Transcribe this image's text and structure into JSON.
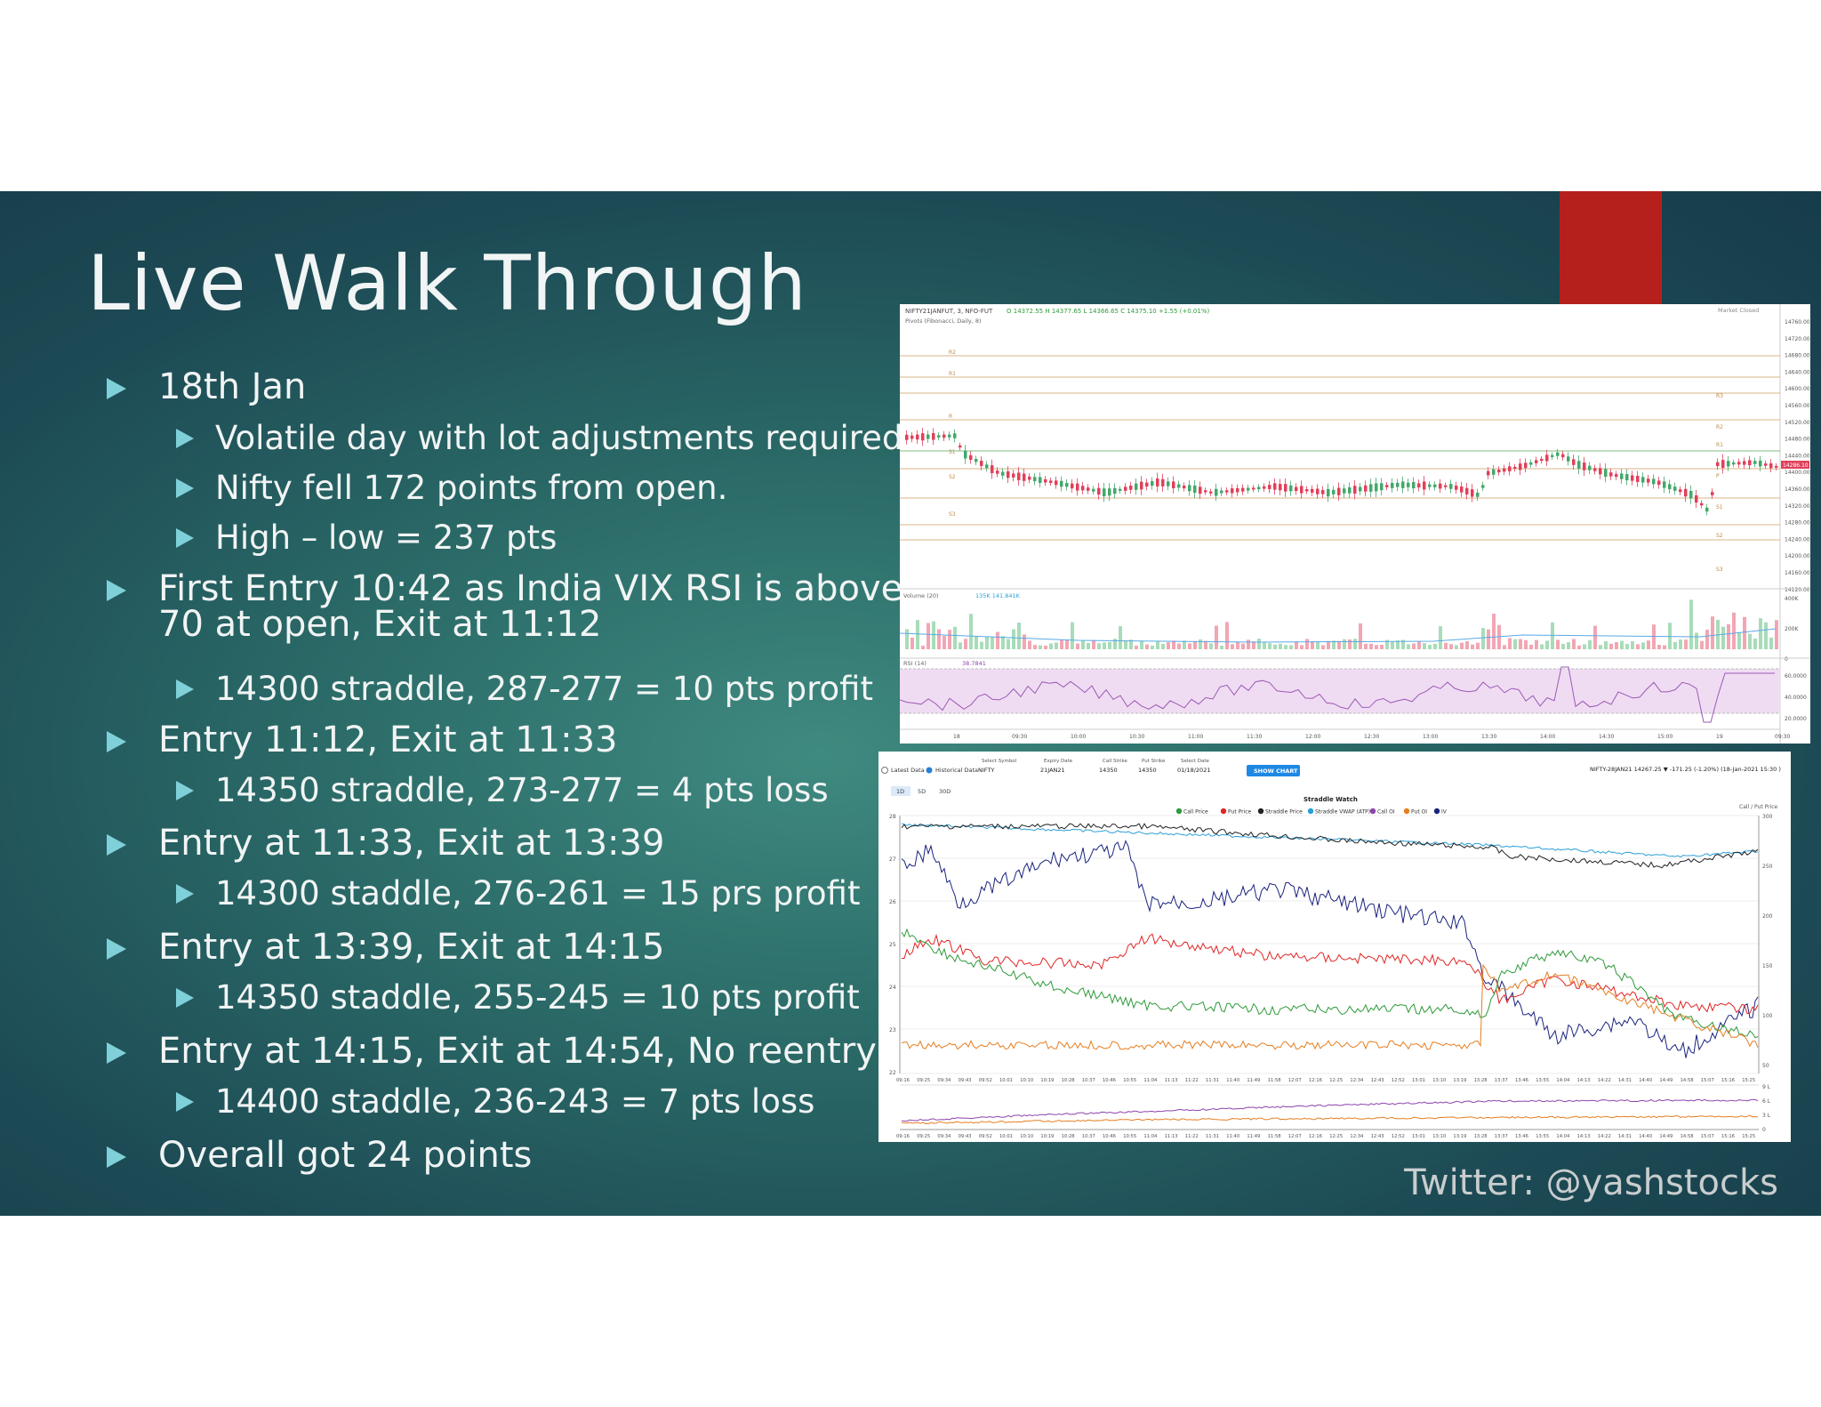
{
  "slide": {
    "title": "Live Walk Through",
    "bullets": [
      {
        "level": 1,
        "text": "18th Jan"
      },
      {
        "level": 2,
        "text": "Volatile day with lot adjustments required"
      },
      {
        "level": 2,
        "text": "Nifty fell 172 points from open."
      },
      {
        "level": 2,
        "text": "High – low = 237 pts"
      },
      {
        "level": 1,
        "text": "First Entry 10:42 as India VIX RSI is above",
        "text2": "70 at open, Exit at 11:12"
      },
      {
        "level": 2,
        "text": "14300 straddle, 287-277 = 10 pts profit"
      },
      {
        "level": 1,
        "text": "Entry 11:12, Exit at 11:33"
      },
      {
        "level": 2,
        "text": "14350 straddle, 273-277 = 4 pts loss"
      },
      {
        "level": 1,
        "text": "Entry at 11:33, Exit at 13:39"
      },
      {
        "level": 2,
        "text": "14300 staddle, 276-261 = 15 prs profit"
      },
      {
        "level": 1,
        "text": "Entry at 13:39, Exit at 14:15"
      },
      {
        "level": 2,
        "text": "14350 staddle, 255-245 = 10 pts profit"
      },
      {
        "level": 1,
        "text": "Entry at 14:15, Exit at 14:54, No reentry"
      },
      {
        "level": 2,
        "text": "14400 staddle, 236-243 = 7 pts loss"
      },
      {
        "level": 1,
        "text": "Overall got 24 points"
      }
    ],
    "footer": "Twitter: @yashstocks"
  },
  "screenshot1": {
    "symbol": "NIFTY21JANFUT, 3, NFO-FUT",
    "ohlc": "O 14372.55  H 14377.65  L 14366.65  C 14375.10  +1.55 (+0.01%)",
    "pivots": "Pivots (Fibonacci, Daily, 8)",
    "market_status": "Market Closed",
    "volume_label": "Volume (20)",
    "volume_values": "135K  141.841K",
    "rsi_label": "RSI (14)",
    "rsi_value": "38.7841",
    "last_price": "14286.10",
    "price_axis": [
      "14760.00",
      "14720.00",
      "14680.00",
      "14640.00",
      "14600.00",
      "14560.00",
      "14520.00",
      "14480.00",
      "14440.00",
      "14400.00",
      "14360.00",
      "14320.00",
      "14280.00",
      "14240.00",
      "14200.00",
      "14160.00",
      "14120.00"
    ],
    "volume_axis": [
      "400K",
      "200K",
      "0"
    ],
    "rsi_axis": [
      "60.0000",
      "40.0000",
      "20.0000"
    ],
    "time_axis": [
      "18",
      "09:30",
      "10:00",
      "10:30",
      "11:00",
      "11:30",
      "12:00",
      "12:30",
      "13:00",
      "13:30",
      "14:00",
      "14:30",
      "15:00",
      "19",
      "09:30"
    ],
    "pivot_labels_left": [
      "R2",
      "R1",
      "R",
      "S1",
      "S2",
      "S3"
    ],
    "pivot_labels_right": [
      "R3",
      "R2",
      "R1",
      "P",
      "S1",
      "S2",
      "S3"
    ]
  },
  "screenshot2": {
    "latest_label": "Latest Data",
    "historical_label": "Historical Data",
    "symbol_label": "Select Symbol",
    "symbol_value": "NIFTY",
    "expiry_label": "Expiry Date",
    "expiry_value": "21JAN21",
    "call_label": "Call Strike",
    "call_value": "14350",
    "put_label": "Put Strike",
    "put_value": "14350",
    "date_label": "Select Date",
    "date_value": "01/18/2021",
    "show_chart": "SHOW CHART",
    "quote": "NIFTY-28JAN21 14267.25 ▼ -171.25 (-1.20%) (18-Jan-2021 15:30 )",
    "ranges": [
      "1D",
      "5D",
      "30D"
    ],
    "chart_title": "Straddle Watch",
    "right_axis_title": "Call / Put Price",
    "legend": [
      "Call Price",
      "Put Price",
      "Straddle Price",
      "Straddle VWAP (ATP)",
      "Call OI",
      "Put OI",
      "IV"
    ],
    "legend_colors": [
      "#2e9a3a",
      "#e02626",
      "#222222",
      "#2a9fd6",
      "#8e44ad",
      "#e67e22",
      "#1a237e"
    ],
    "left_axis": [
      "28",
      "27",
      "26",
      "25",
      "24",
      "23",
      "22"
    ],
    "right_axis": [
      "300",
      "250",
      "200",
      "150",
      "100",
      "50"
    ],
    "oi_axis": [
      "9 L",
      "6 L",
      "3 L",
      "0"
    ],
    "time_axis": [
      "09:16",
      "09:25",
      "09:34",
      "09:43",
      "09:52",
      "10:01",
      "10:10",
      "10:19",
      "10:28",
      "10:37",
      "10:46",
      "10:55",
      "11:04",
      "11:13",
      "11:22",
      "11:31",
      "11:40",
      "11:49",
      "11:58",
      "12:07",
      "12:16",
      "12:25",
      "12:34",
      "12:43",
      "12:52",
      "13:01",
      "13:10",
      "13:19",
      "13:28",
      "13:37",
      "13:46",
      "13:55",
      "14:04",
      "14:13",
      "14:22",
      "14:31",
      "14:40",
      "14:49",
      "14:58",
      "15:07",
      "15:16",
      "15:25"
    ]
  }
}
